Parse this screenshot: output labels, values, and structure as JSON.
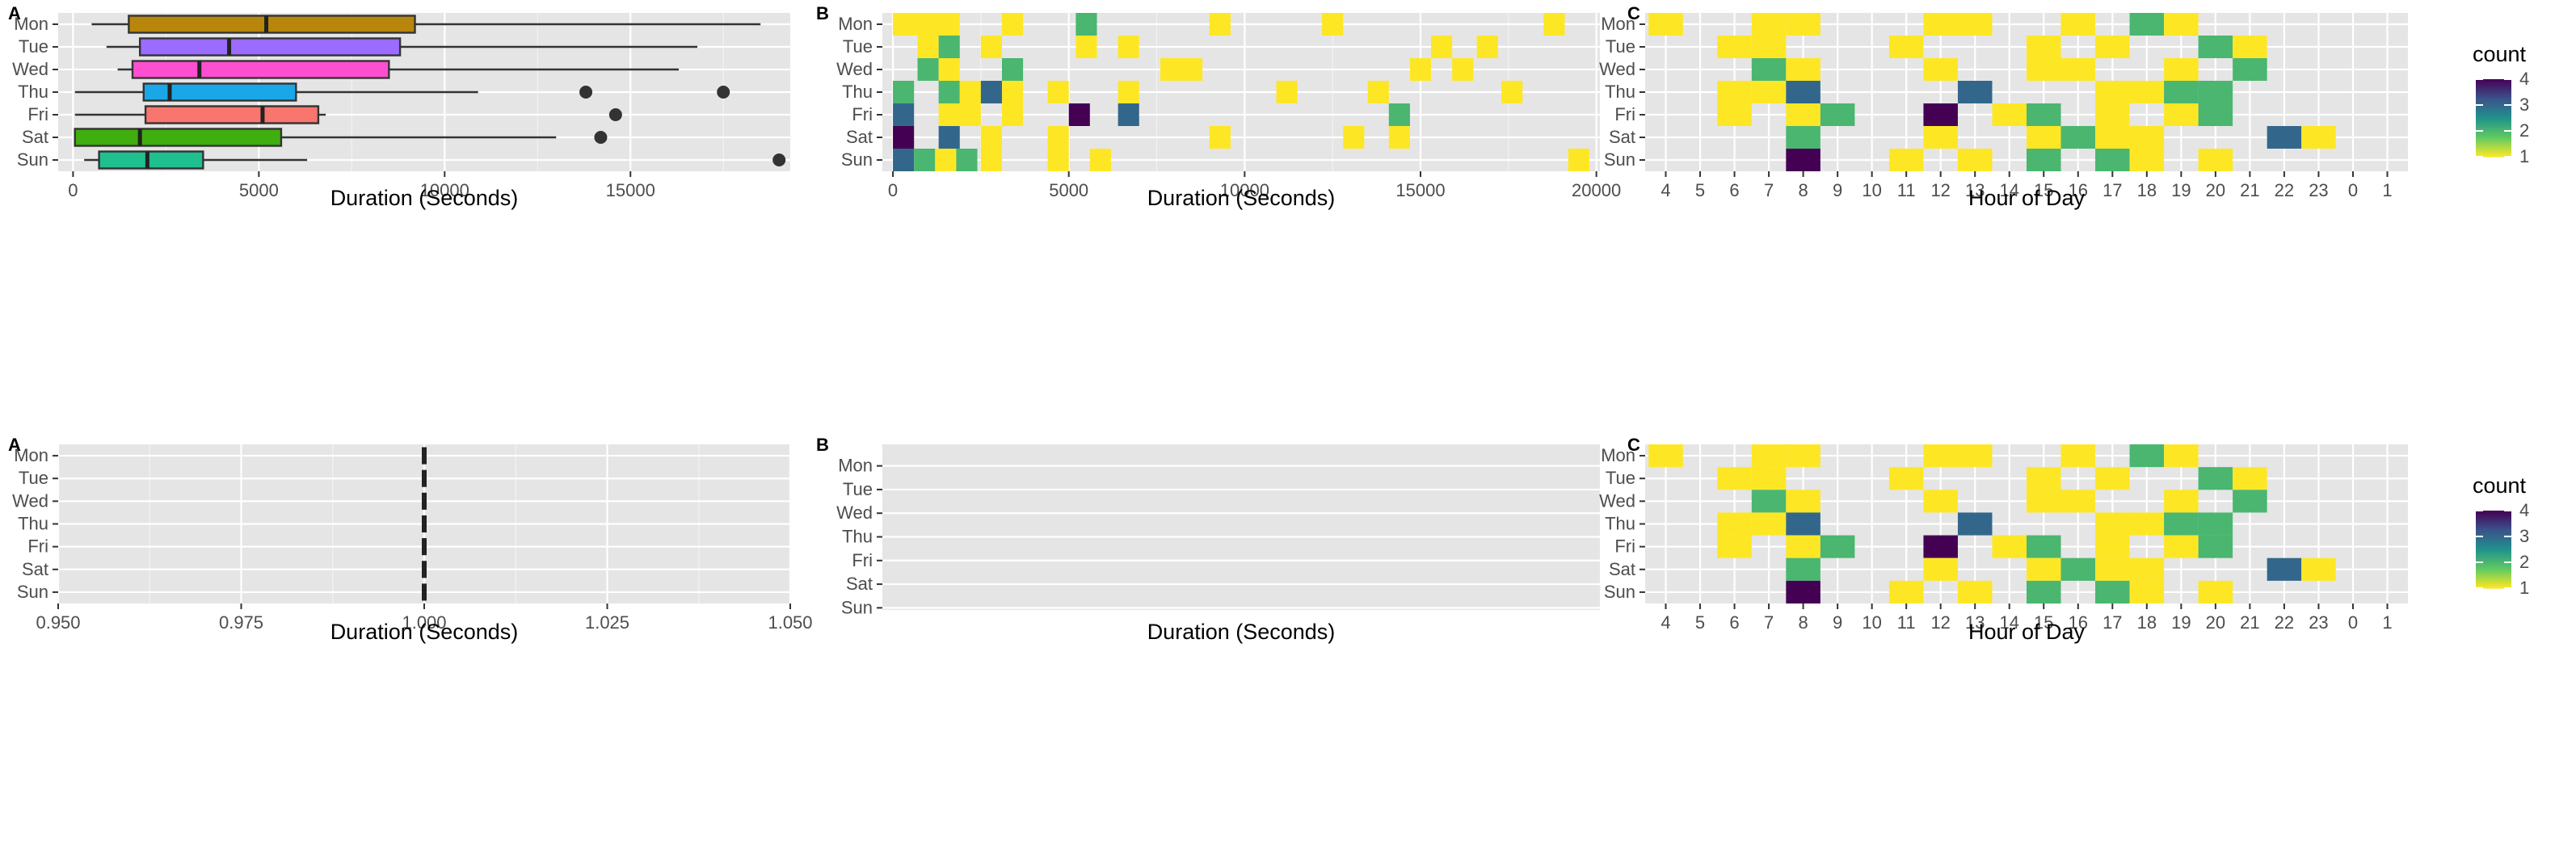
{
  "palette": {
    "viridis": [
      "#440154",
      "#3b528b",
      "#21918c",
      "#5ec962",
      "#fde725"
    ],
    "panel_bg": "#e5e5e5",
    "grid_major": "#ffffff",
    "grid_minor": "#f2f2f2"
  },
  "days": [
    "Mon",
    "Tue",
    "Wed",
    "Thu",
    "Fri",
    "Sat",
    "Sun"
  ],
  "chart_data": [
    {
      "panel": "top-A",
      "tag": "A",
      "type": "boxplot",
      "xlabel": "Duration (Seconds)",
      "xlim": [
        -400,
        19300
      ],
      "xticks": [
        0,
        5000,
        10000,
        15000
      ],
      "xtick_labels": [
        "0",
        "5000",
        "10000",
        "15000"
      ],
      "boxes": [
        {
          "day": "Mon",
          "lo": 500,
          "q1": 1500,
          "median": 5200,
          "q3": 9200,
          "hi": 18500,
          "outliers": [],
          "fill": "#b8860b"
        },
        {
          "day": "Tue",
          "lo": 900,
          "q1": 1800,
          "median": 4200,
          "q3": 8800,
          "hi": 16800,
          "outliers": [],
          "fill": "#9b6cff"
        },
        {
          "day": "Wed",
          "lo": 1200,
          "q1": 1600,
          "median": 3400,
          "q3": 8500,
          "hi": 16300,
          "outliers": [],
          "fill": "#ff4fd1"
        },
        {
          "day": "Thu",
          "lo": 50,
          "q1": 1900,
          "median": 2600,
          "q3": 6000,
          "hi": 10900,
          "outliers": [
            13800,
            17500
          ],
          "fill": "#1aa7e8"
        },
        {
          "day": "Fri",
          "lo": 50,
          "q1": 1950,
          "median": 5100,
          "q3": 6600,
          "hi": 6800,
          "outliers": [
            14600
          ],
          "fill": "#f8766d"
        },
        {
          "day": "Sat",
          "lo": 50,
          "q1": 50,
          "median": 1800,
          "q3": 5600,
          "hi": 13000,
          "outliers": [
            14200
          ],
          "fill": "#3fae0e"
        },
        {
          "day": "Sun",
          "lo": 300,
          "q1": 700,
          "median": 2000,
          "q3": 3500,
          "hi": 6300,
          "outliers": [
            19000
          ],
          "fill": "#1fbf8f"
        }
      ]
    },
    {
      "panel": "top-B",
      "tag": "B",
      "type": "heatmap",
      "xlabel": "Duration (Seconds)",
      "xlim": [
        -300,
        20100
      ],
      "xticks": [
        0,
        5000,
        10000,
        15000,
        20000
      ],
      "xtick_labels": [
        "0",
        "5000",
        "10000",
        "15000",
        "20000"
      ],
      "bin_width": 600,
      "legend": {
        "title": "count",
        "range": [
          1,
          4
        ]
      },
      "cells": [
        {
          "day": "Mon",
          "x0": 0,
          "x1": 1900,
          "count": 1
        },
        {
          "day": "Mon",
          "x0": 3100,
          "x1": 3700,
          "count": 1
        },
        {
          "day": "Mon",
          "x0": 5200,
          "x1": 5800,
          "count": 2
        },
        {
          "day": "Mon",
          "x0": 9000,
          "x1": 9600,
          "count": 1
        },
        {
          "day": "Mon",
          "x0": 12200,
          "x1": 12800,
          "count": 1
        },
        {
          "day": "Mon",
          "x0": 18500,
          "x1": 19100,
          "count": 1
        },
        {
          "day": "Tue",
          "x0": 700,
          "x1": 1300,
          "count": 1
        },
        {
          "day": "Tue",
          "x0": 1300,
          "x1": 1900,
          "count": 2
        },
        {
          "day": "Tue",
          "x0": 2500,
          "x1": 3100,
          "count": 1
        },
        {
          "day": "Tue",
          "x0": 5200,
          "x1": 5800,
          "count": 1
        },
        {
          "day": "Tue",
          "x0": 6400,
          "x1": 7000,
          "count": 1
        },
        {
          "day": "Tue",
          "x0": 15300,
          "x1": 15900,
          "count": 1
        },
        {
          "day": "Tue",
          "x0": 16600,
          "x1": 17200,
          "count": 1
        },
        {
          "day": "Wed",
          "x0": 700,
          "x1": 1300,
          "count": 2
        },
        {
          "day": "Wed",
          "x0": 1300,
          "x1": 1900,
          "count": 1
        },
        {
          "day": "Wed",
          "x0": 3100,
          "x1": 3700,
          "count": 2
        },
        {
          "day": "Wed",
          "x0": 7600,
          "x1": 8800,
          "count": 1
        },
        {
          "day": "Wed",
          "x0": 14700,
          "x1": 15300,
          "count": 1
        },
        {
          "day": "Wed",
          "x0": 15900,
          "x1": 16500,
          "count": 1
        },
        {
          "day": "Thu",
          "x0": 0,
          "x1": 600,
          "count": 2
        },
        {
          "day": "Thu",
          "x0": 1300,
          "x1": 1900,
          "count": 2
        },
        {
          "day": "Thu",
          "x0": 1900,
          "x1": 2500,
          "count": 1
        },
        {
          "day": "Thu",
          "x0": 2500,
          "x1": 3100,
          "count": 3
        },
        {
          "day": "Thu",
          "x0": 3100,
          "x1": 3700,
          "count": 1
        },
        {
          "day": "Thu",
          "x0": 4400,
          "x1": 5000,
          "count": 1
        },
        {
          "day": "Thu",
          "x0": 6400,
          "x1": 7000,
          "count": 1
        },
        {
          "day": "Thu",
          "x0": 10900,
          "x1": 11500,
          "count": 1
        },
        {
          "day": "Thu",
          "x0": 13500,
          "x1": 14100,
          "count": 1
        },
        {
          "day": "Thu",
          "x0": 17300,
          "x1": 17900,
          "count": 1
        },
        {
          "day": "Fri",
          "x0": 0,
          "x1": 600,
          "count": 3
        },
        {
          "day": "Fri",
          "x0": 1300,
          "x1": 2500,
          "count": 1
        },
        {
          "day": "Fri",
          "x0": 3100,
          "x1": 3700,
          "count": 1
        },
        {
          "day": "Fri",
          "x0": 5000,
          "x1": 5600,
          "count": 4
        },
        {
          "day": "Fri",
          "x0": 6400,
          "x1": 7000,
          "count": 3
        },
        {
          "day": "Fri",
          "x0": 14100,
          "x1": 14700,
          "count": 2
        },
        {
          "day": "Sat",
          "x0": 0,
          "x1": 600,
          "count": 4
        },
        {
          "day": "Sat",
          "x0": 1300,
          "x1": 1900,
          "count": 3
        },
        {
          "day": "Sat",
          "x0": 2500,
          "x1": 3100,
          "count": 1
        },
        {
          "day": "Sat",
          "x0": 4400,
          "x1": 5000,
          "count": 1
        },
        {
          "day": "Sat",
          "x0": 9000,
          "x1": 9600,
          "count": 1
        },
        {
          "day": "Sat",
          "x0": 12800,
          "x1": 13400,
          "count": 1
        },
        {
          "day": "Sat",
          "x0": 14100,
          "x1": 14700,
          "count": 1
        },
        {
          "day": "Sun",
          "x0": 0,
          "x1": 600,
          "count": 3
        },
        {
          "day": "Sun",
          "x0": 600,
          "x1": 1200,
          "count": 2
        },
        {
          "day": "Sun",
          "x0": 1200,
          "x1": 1800,
          "count": 1
        },
        {
          "day": "Sun",
          "x0": 1800,
          "x1": 2400,
          "count": 2
        },
        {
          "day": "Sun",
          "x0": 2500,
          "x1": 3100,
          "count": 1
        },
        {
          "day": "Sun",
          "x0": 4400,
          "x1": 5000,
          "count": 1
        },
        {
          "day": "Sun",
          "x0": 5600,
          "x1": 6200,
          "count": 1
        },
        {
          "day": "Sun",
          "x0": 19200,
          "x1": 19800,
          "count": 1
        }
      ]
    },
    {
      "panel": "top-C",
      "tag": "C",
      "type": "heatmap",
      "xlabel": "Hour of Day",
      "x_categories": [
        "4",
        "5",
        "6",
        "7",
        "8",
        "9",
        "10",
        "11",
        "12",
        "13",
        "14",
        "15",
        "16",
        "17",
        "18",
        "19",
        "20",
        "21",
        "22",
        "23",
        "0",
        "1"
      ],
      "legend": {
        "title": "count",
        "range": [
          1,
          4
        ],
        "ticks": [
          1,
          2,
          3,
          4
        ]
      },
      "cells": [
        {
          "day": "Mon",
          "hour": "4",
          "count": 1
        },
        {
          "day": "Mon",
          "hour": "7",
          "count": 1
        },
        {
          "day": "Mon",
          "hour": "8",
          "count": 1
        },
        {
          "day": "Mon",
          "hour": "12",
          "count": 1
        },
        {
          "day": "Mon",
          "hour": "13",
          "count": 1
        },
        {
          "day": "Mon",
          "hour": "16",
          "count": 1
        },
        {
          "day": "Mon",
          "hour": "18",
          "count": 2
        },
        {
          "day": "Mon",
          "hour": "19",
          "count": 1
        },
        {
          "day": "Tue",
          "hour": "6",
          "count": 1
        },
        {
          "day": "Tue",
          "hour": "7",
          "count": 1
        },
        {
          "day": "Tue",
          "hour": "11",
          "count": 1
        },
        {
          "day": "Tue",
          "hour": "15",
          "count": 1
        },
        {
          "day": "Tue",
          "hour": "17",
          "count": 1
        },
        {
          "day": "Tue",
          "hour": "20",
          "count": 2
        },
        {
          "day": "Tue",
          "hour": "21",
          "count": 1
        },
        {
          "day": "Wed",
          "hour": "7",
          "count": 2
        },
        {
          "day": "Wed",
          "hour": "8",
          "count": 1
        },
        {
          "day": "Wed",
          "hour": "12",
          "count": 1
        },
        {
          "day": "Wed",
          "hour": "15",
          "count": 1
        },
        {
          "day": "Wed",
          "hour": "16",
          "count": 1
        },
        {
          "day": "Wed",
          "hour": "19",
          "count": 1
        },
        {
          "day": "Wed",
          "hour": "21",
          "count": 2
        },
        {
          "day": "Thu",
          "hour": "6",
          "count": 1
        },
        {
          "day": "Thu",
          "hour": "7",
          "count": 1
        },
        {
          "day": "Thu",
          "hour": "8",
          "count": 3
        },
        {
          "day": "Thu",
          "hour": "13",
          "count": 3
        },
        {
          "day": "Thu",
          "hour": "17",
          "count": 1
        },
        {
          "day": "Thu",
          "hour": "18",
          "count": 1
        },
        {
          "day": "Thu",
          "hour": "19",
          "count": 2
        },
        {
          "day": "Thu",
          "hour": "20",
          "count": 2
        },
        {
          "day": "Fri",
          "hour": "6",
          "count": 1
        },
        {
          "day": "Fri",
          "hour": "8",
          "count": 1
        },
        {
          "day": "Fri",
          "hour": "9",
          "count": 2
        },
        {
          "day": "Fri",
          "hour": "12",
          "count": 4
        },
        {
          "day": "Fri",
          "hour": "14",
          "count": 1
        },
        {
          "day": "Fri",
          "hour": "15",
          "count": 2
        },
        {
          "day": "Fri",
          "hour": "17",
          "count": 1
        },
        {
          "day": "Fri",
          "hour": "19",
          "count": 1
        },
        {
          "day": "Fri",
          "hour": "20",
          "count": 2
        },
        {
          "day": "Sat",
          "hour": "8",
          "count": 2
        },
        {
          "day": "Sat",
          "hour": "12",
          "count": 1
        },
        {
          "day": "Sat",
          "hour": "15",
          "count": 1
        },
        {
          "day": "Sat",
          "hour": "16",
          "count": 2
        },
        {
          "day": "Sat",
          "hour": "17",
          "count": 1
        },
        {
          "day": "Sat",
          "hour": "18",
          "count": 1
        },
        {
          "day": "Sat",
          "hour": "22",
          "count": 3
        },
        {
          "day": "Sat",
          "hour": "23",
          "count": 1
        },
        {
          "day": "Sun",
          "hour": "8",
          "count": 4
        },
        {
          "day": "Sun",
          "hour": "11",
          "count": 1
        },
        {
          "day": "Sun",
          "hour": "13",
          "count": 1
        },
        {
          "day": "Sun",
          "hour": "15",
          "count": 2
        },
        {
          "day": "Sun",
          "hour": "17",
          "count": 2
        },
        {
          "day": "Sun",
          "hour": "18",
          "count": 1
        },
        {
          "day": "Sun",
          "hour": "20",
          "count": 1
        }
      ]
    },
    {
      "panel": "bottom-A",
      "tag": "A",
      "type": "boxplot",
      "xlabel": "Duration (Seconds)",
      "xlim": [
        0.95,
        1.05
      ],
      "xticks": [
        0.95,
        0.975,
        1.0,
        1.025,
        1.05
      ],
      "xtick_labels": [
        "0.950",
        "0.975",
        "1.000",
        "1.025",
        "1.050"
      ],
      "boxes": [
        {
          "day": "Mon",
          "median": 1.0
        },
        {
          "day": "Tue",
          "median": 1.0
        },
        {
          "day": "Wed",
          "median": 1.0
        },
        {
          "day": "Thu",
          "median": 1.0
        },
        {
          "day": "Fri",
          "median": 1.0
        },
        {
          "day": "Sat",
          "median": 1.0
        },
        {
          "day": "Sun",
          "median": 1.0
        }
      ]
    },
    {
      "panel": "bottom-B",
      "tag": "B",
      "type": "heatmap",
      "xlabel": "Duration (Seconds)",
      "cells": []
    },
    {
      "panel": "bottom-C",
      "tag": "C",
      "type": "heatmap",
      "xlabel": "Hour of Day",
      "same_as": "top-C",
      "legend": {
        "title": "count",
        "range": [
          1,
          4
        ],
        "ticks": [
          1,
          2,
          3,
          4
        ]
      }
    }
  ]
}
